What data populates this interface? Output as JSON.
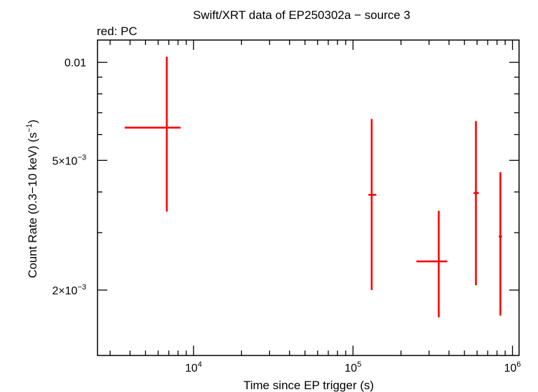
{
  "title": "Swift/XRT data of EP250302a − source 3",
  "subtitle": "red: PC",
  "chart_data": {
    "type": "scatter",
    "title": "Swift/XRT data of EP250302a − source 3",
    "subtitle": "red: PC",
    "xlabel": "Time since EP trigger (s)",
    "ylabel_parts": {
      "main": "Count Rate (0.3−10 keV) (s",
      "sup": "−1",
      "end": ")"
    },
    "x_scale": "log",
    "y_scale": "log",
    "xlim": [
      2500,
      1100000
    ],
    "ylim": [
      0.00126,
      0.0117
    ],
    "x_ticks": [
      {
        "value": 10000,
        "base": "10",
        "exp": "4"
      },
      {
        "value": 100000,
        "base": "10",
        "exp": "5"
      },
      {
        "value": 1000000,
        "base": "10",
        "exp": "6"
      }
    ],
    "y_ticks": [
      {
        "value": 0.01,
        "label": "0.01"
      },
      {
        "value": 0.005,
        "mant": "5×10",
        "exp": "−3"
      },
      {
        "value": 0.002,
        "mant": "2×10",
        "exp": "−3"
      }
    ],
    "grid": false,
    "series": [
      {
        "color": "#ff0000",
        "points": [
          {
            "x": 6800,
            "x_lo": 3700,
            "x_hi": 8300,
            "y": 0.0063,
            "y_lo": 0.00348,
            "y_hi": 0.0104
          },
          {
            "x": 131000,
            "x_lo": 125000,
            "x_hi": 140000,
            "y": 0.00392,
            "y_lo": 0.002,
            "y_hi": 0.0067
          },
          {
            "x": 345000,
            "x_lo": 250000,
            "x_hi": 390000,
            "y": 0.00245,
            "y_lo": 0.00165,
            "y_hi": 0.0035
          },
          {
            "x": 590000,
            "x_lo": 570000,
            "x_hi": 615000,
            "y": 0.00397,
            "y_lo": 0.00207,
            "y_hi": 0.0066
          },
          {
            "x": 840000,
            "x_lo": 820000,
            "x_hi": 860000,
            "y": 0.00292,
            "y_lo": 0.00167,
            "y_hi": 0.0046
          }
        ]
      }
    ]
  }
}
